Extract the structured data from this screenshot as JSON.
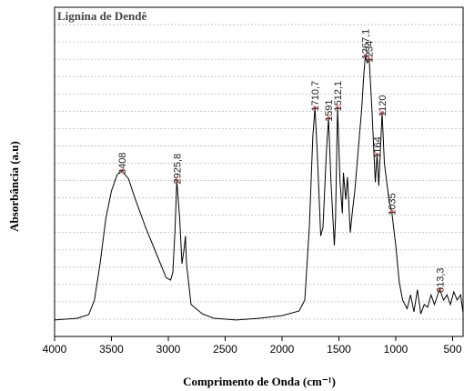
{
  "chart_data": {
    "type": "line",
    "title": "Lignina de Dendê",
    "xlabel": "Comprimento de Onda (cm⁻¹)",
    "ylabel": "Absorbância (a.u)",
    "color": "#000000",
    "x": [
      4000,
      3800,
      3700,
      3650,
      3600,
      3550,
      3500,
      3450,
      3408,
      3350,
      3300,
      3200,
      3100,
      3020,
      2980,
      2960,
      2940,
      2925.8,
      2900,
      2880,
      2860,
      2850,
      2840,
      2800,
      2700,
      2600,
      2400,
      2200,
      2000,
      1850,
      1800,
      1760,
      1730,
      1710.7,
      1690,
      1660,
      1640,
      1610,
      1591,
      1570,
      1540,
      1530,
      1512.1,
      1490,
      1470,
      1460,
      1440,
      1425,
      1400,
      1380,
      1360,
      1330,
      1300,
      1280,
      1267.1,
      1250,
      1234,
      1210,
      1180,
      1164,
      1150,
      1120,
      1100,
      1060,
      1035,
      1000,
      970,
      940,
      900,
      870,
      840,
      810,
      780,
      750,
      720,
      690,
      660,
      613.3,
      580,
      550,
      520,
      490,
      460,
      430,
      410
    ],
    "values": [
      0.95,
      1.05,
      1.26,
      2.1,
      4.2,
      6.8,
      8.4,
      9.35,
      9.55,
      9.1,
      8.1,
      6.3,
      4.7,
      3.4,
      3.25,
      3.7,
      6.3,
      9.0,
      6.8,
      4.2,
      5.1,
      5.8,
      4.2,
      1.84,
      1.3,
      1.05,
      0.95,
      1.05,
      1.2,
      1.47,
      2.1,
      6.3,
      11.5,
      13.2,
      10.5,
      5.8,
      6.3,
      10.7,
      12.6,
      8.9,
      5.25,
      6.8,
      13.2,
      8.9,
      7.1,
      9.45,
      7.9,
      9.2,
      6.0,
      7.3,
      8.4,
      10.8,
      13.1,
      15.2,
      16.2,
      15.8,
      16.0,
      13.1,
      8.9,
      10.5,
      8.7,
      12.9,
      10.0,
      7.9,
      7.2,
      5.25,
      3.15,
      2.1,
      1.6,
      2.4,
      1.42,
      2.7,
      1.3,
      1.84,
      1.68,
      2.4,
      1.84,
      2.73,
      2.1,
      2.4,
      1.84,
      2.57,
      2.1,
      2.4,
      1.42
    ],
    "xlim": [
      4000,
      400
    ],
    "xticks": [
      4000,
      3500,
      3000,
      2500,
      2000,
      1500,
      1000,
      500
    ],
    "ylim": [
      0,
      19
    ],
    "yticks": [
      1,
      2,
      3,
      4,
      5,
      6,
      7,
      8,
      9,
      10,
      11,
      12,
      13,
      14,
      15,
      16,
      17,
      18
    ],
    "grid": true,
    "annotation_color": "#e06060",
    "annotations": [
      {
        "x": 3408,
        "y": 9.55,
        "label": "3408"
      },
      {
        "x": 2925.8,
        "y": 9.0,
        "label": "2925,8"
      },
      {
        "x": 1710.7,
        "y": 13.2,
        "label": "1710,7"
      },
      {
        "x": 1591,
        "y": 12.6,
        "label": "1591"
      },
      {
        "x": 1512.1,
        "y": 13.2,
        "label": "1512,1"
      },
      {
        "x": 1267.1,
        "y": 16.2,
        "label": "1267,1"
      },
      {
        "x": 1234,
        "y": 16.0,
        "label": "1234"
      },
      {
        "x": 1164,
        "y": 10.5,
        "label": "1164"
      },
      {
        "x": 1120,
        "y": 12.9,
        "label": "1120"
      },
      {
        "x": 1035,
        "y": 7.2,
        "label": "1035"
      },
      {
        "x": 613.3,
        "y": 2.73,
        "label": "613,3"
      }
    ]
  }
}
